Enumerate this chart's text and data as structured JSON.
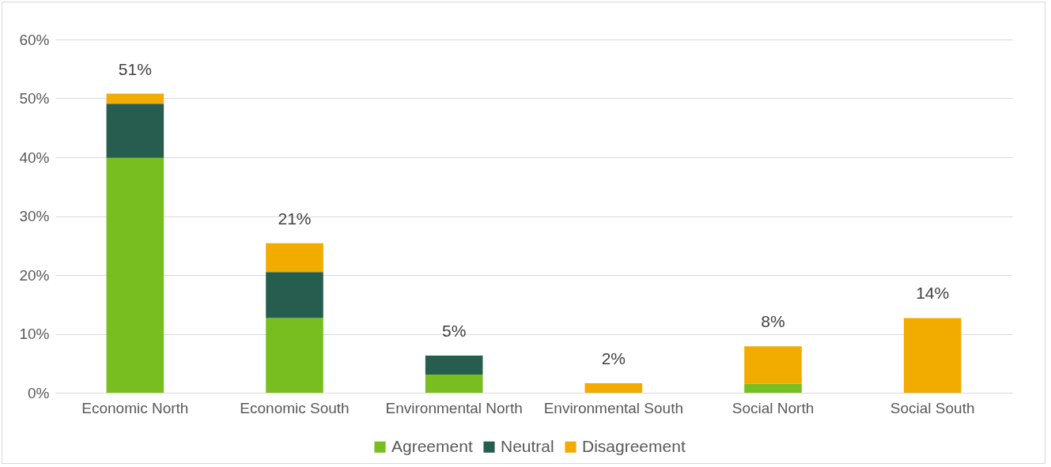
{
  "chart_data": {
    "type": "bar",
    "stacked": true,
    "categories": [
      "Economic North",
      "Economic South",
      "Environmental North",
      "Environmental South",
      "Social North",
      "Social South"
    ],
    "series": [
      {
        "name": "Agreement",
        "color": "#78be20",
        "values": [
          39.9,
          12.7,
          3.1,
          0,
          1.5,
          0
        ]
      },
      {
        "name": "Neutral",
        "color": "#275d4f",
        "values": [
          9.2,
          7.8,
          3.2,
          0,
          0,
          0
        ]
      },
      {
        "name": "Disagreement",
        "color": "#f2ac00",
        "values": [
          1.7,
          4.9,
          0,
          1.6,
          6.4,
          12.7
        ]
      }
    ],
    "annotations": [
      {
        "text": "51%",
        "x": "Economic North",
        "y": 50.8
      },
      {
        "text": "21%",
        "x": "Economic South",
        "y": 25.4
      },
      {
        "text": "5%",
        "x": "Environmental North",
        "y": 6.3
      },
      {
        "text": "2%",
        "x": "Environmental South",
        "y": 1.6
      },
      {
        "text": "8%",
        "x": "Social North",
        "y": 7.9
      },
      {
        "text": "14%",
        "x": "Social South",
        "y": 12.7
      }
    ],
    "ylim": [
      0,
      60
    ],
    "yticks": [
      {
        "value": 0,
        "label": "0%"
      },
      {
        "value": 10,
        "label": "10%"
      },
      {
        "value": 20,
        "label": "20%"
      },
      {
        "value": 30,
        "label": "30%"
      },
      {
        "value": 40,
        "label": "40%"
      },
      {
        "value": 50,
        "label": "50%"
      },
      {
        "value": 60,
        "label": "60%"
      }
    ],
    "grid": "y",
    "legend": "bottom"
  }
}
